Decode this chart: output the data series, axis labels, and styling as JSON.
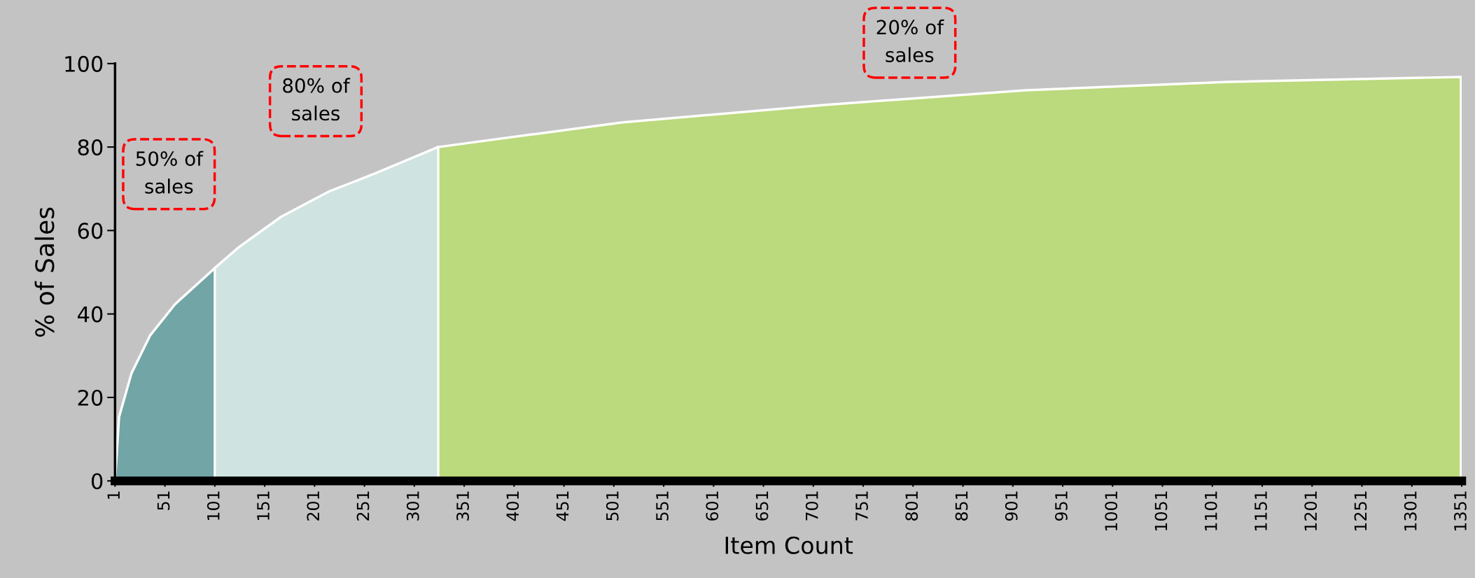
{
  "chart_data": {
    "type": "area",
    "xlabel": "Item Count",
    "ylabel": "% of Sales",
    "annotations": [
      "50% of\nsales",
      "80% of\nsales",
      "20% of\nsales"
    ],
    "series": [
      {
        "color": "#72a5a5",
        "x": [
          1,
          5,
          17.5,
          36,
          61,
          101
        ],
        "values": [
          0,
          15.3,
          25.8,
          34.8,
          42.3,
          51
        ]
      },
      {
        "color": "#cfe3e0",
        "x": [
          101,
          124,
          167.5,
          215,
          262,
          325
        ],
        "values": [
          51,
          55.8,
          63.3,
          69.3,
          73.7,
          80
        ]
      },
      {
        "color": "#bbd97d",
        "x": [
          325,
          509,
          712,
          914,
          1117,
          1350
        ],
        "values": [
          80,
          85.9,
          90.1,
          93.6,
          95.6,
          96.8
        ]
      }
    ],
    "xlim": [
      1,
      1351
    ],
    "xticks": [
      1,
      51,
      101,
      151,
      201,
      251,
      301,
      351,
      401,
      451,
      501,
      551,
      601,
      651,
      701,
      751,
      801,
      851,
      901,
      951,
      1001,
      1051,
      1101,
      1151,
      1201,
      1251,
      1301,
      1351
    ],
    "ylim": [
      0,
      100
    ],
    "yticks": [
      0,
      20,
      40,
      60,
      80,
      100
    ]
  }
}
